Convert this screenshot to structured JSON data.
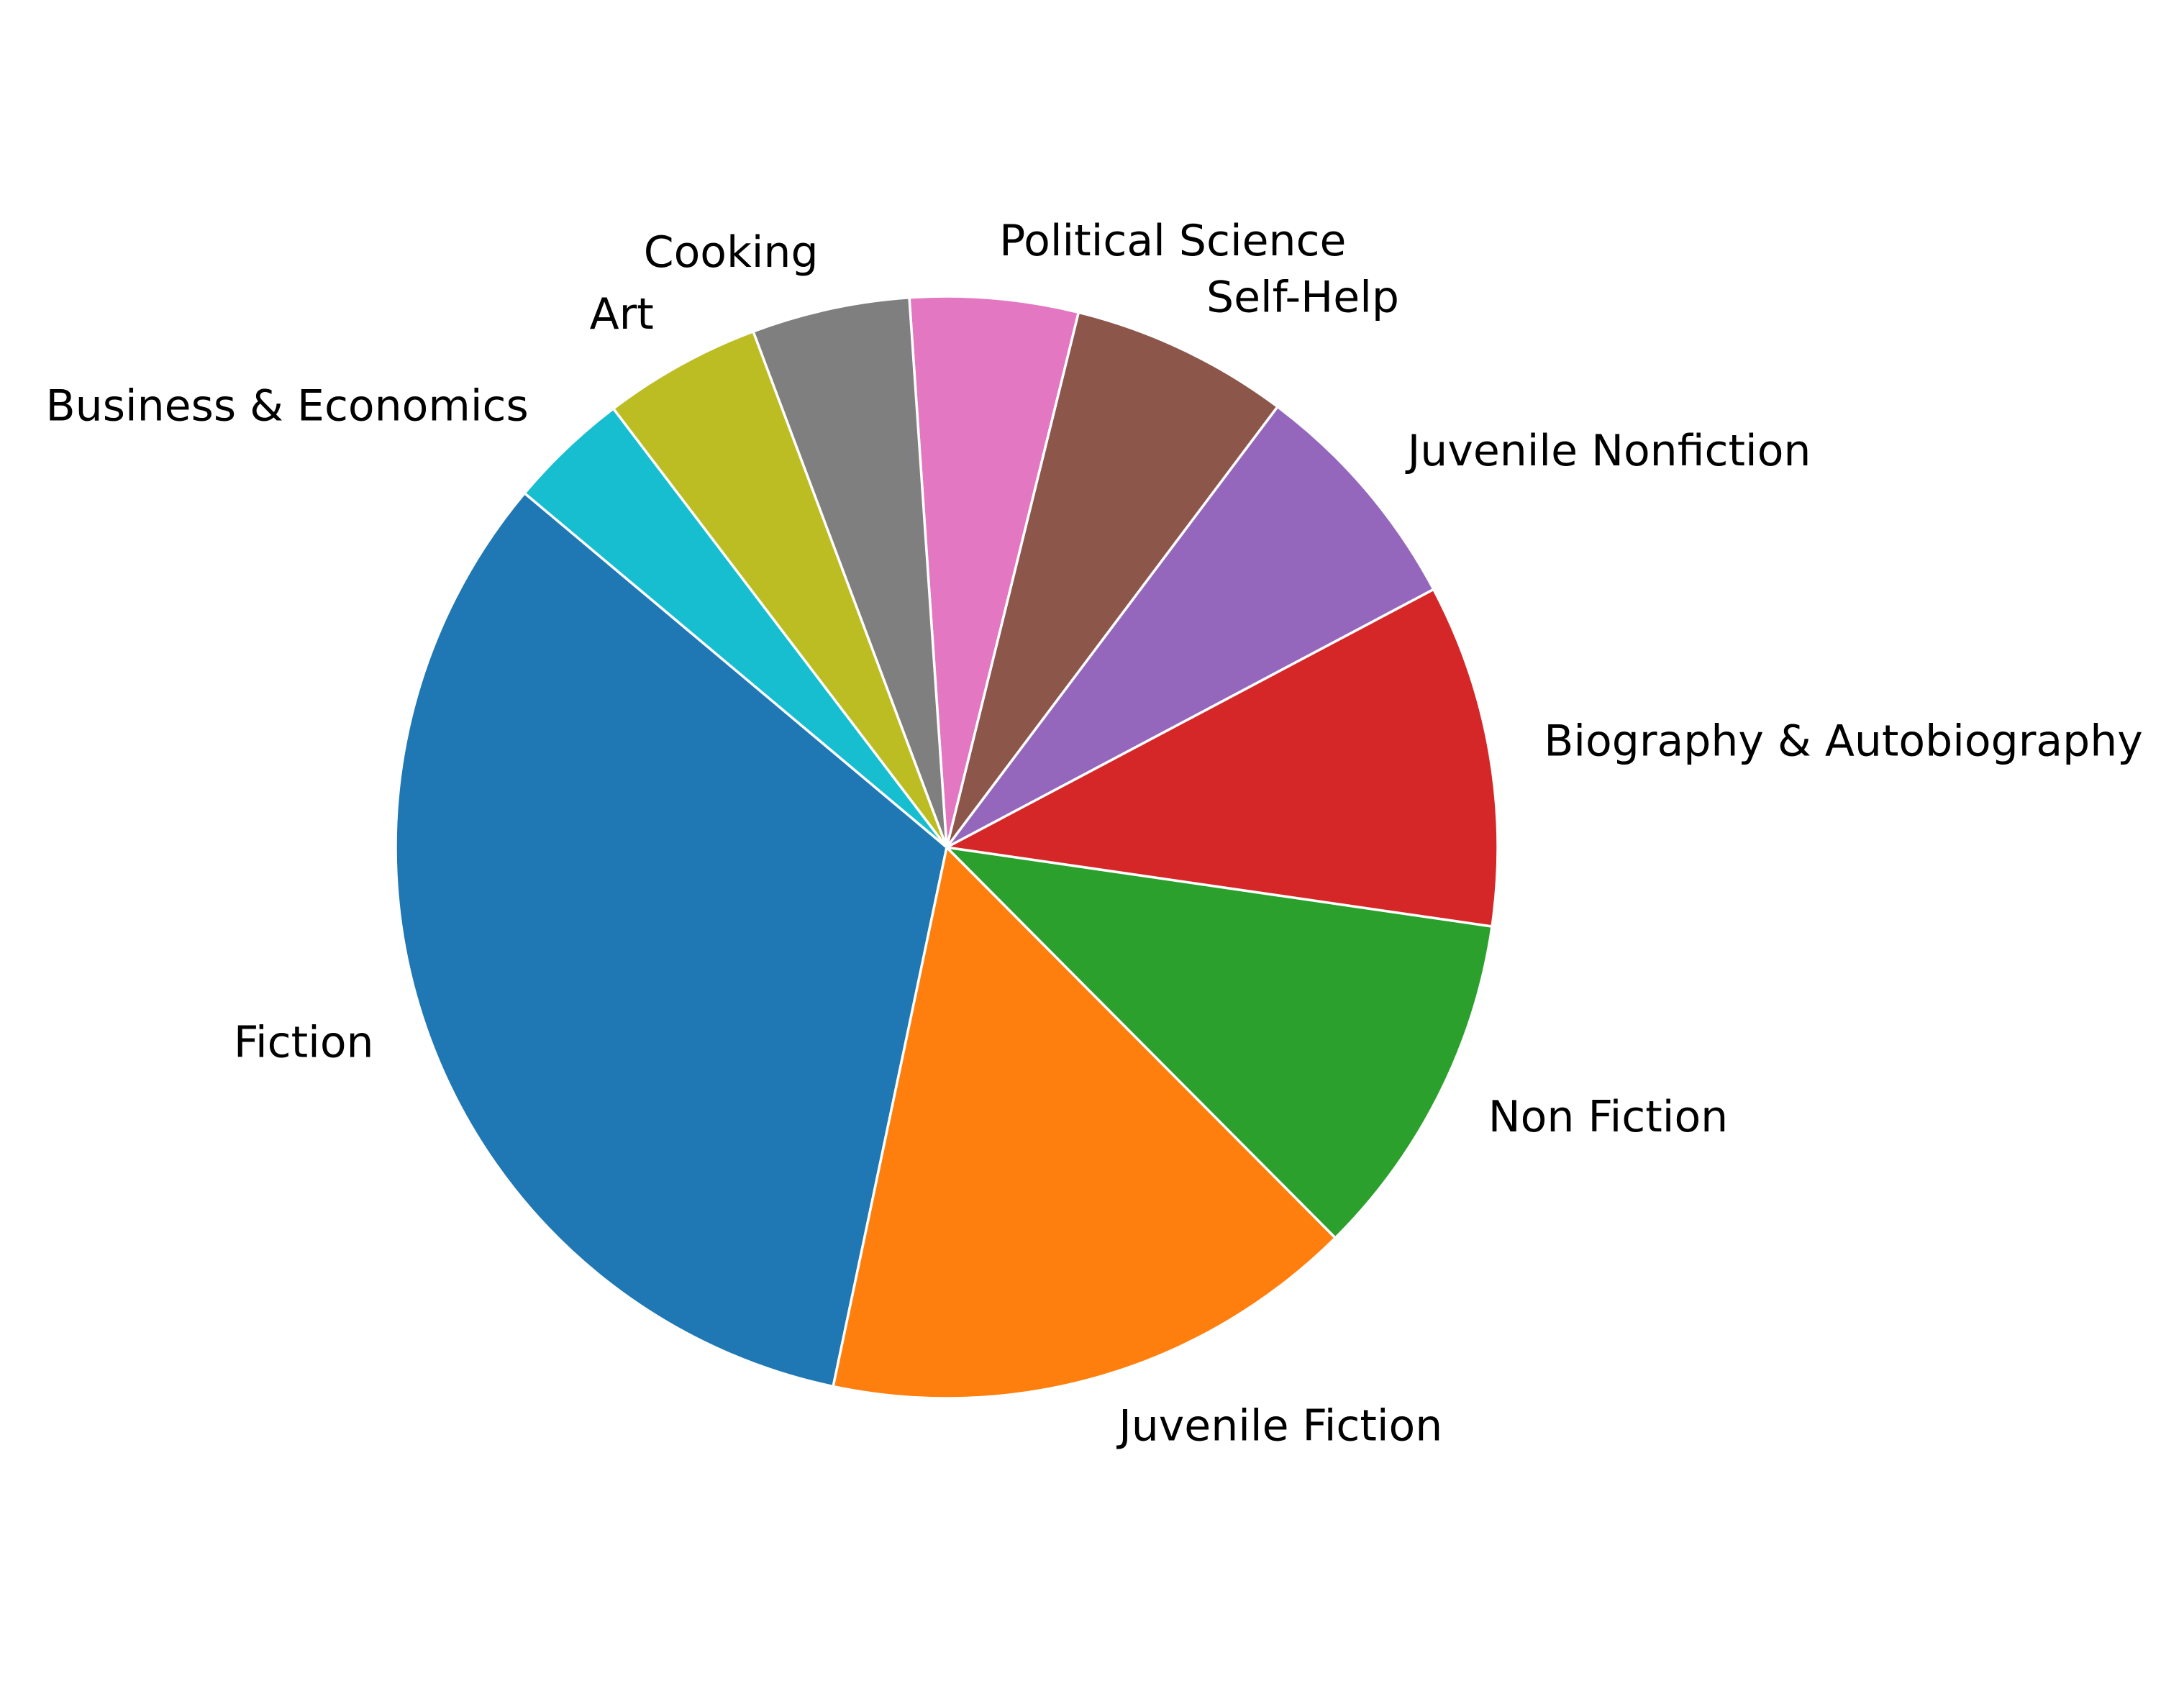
{
  "chart_data": {
    "type": "pie",
    "title": "",
    "categories": [
      "Fiction",
      "Juvenile Fiction",
      "Non Fiction",
      "Biography & Autobiography",
      "Juvenile Nonfiction",
      "Self-Help",
      "Political Science",
      "Cooking",
      "Art",
      "Business & Economics"
    ],
    "values": [
      33.3,
      16.0,
      10.4,
      10.2,
      7.1,
      6.5,
      5.0,
      4.7,
      4.7,
      3.6
    ],
    "colors": [
      "#1f77b4",
      "#ff7f0e",
      "#2ca02c",
      "#d62728",
      "#9467bd",
      "#8c564b",
      "#e377c2",
      "#7f7f7f",
      "#bcbd22",
      "#17becf"
    ],
    "start_angle_deg": 140,
    "direction": "counterclockwise",
    "legend": "none",
    "slice_labels": "outside"
  }
}
